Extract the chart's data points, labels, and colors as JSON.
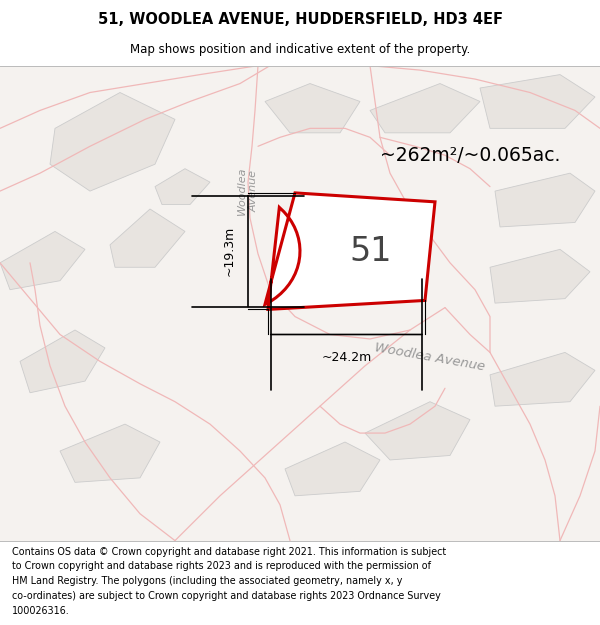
{
  "title": "51, WOODLEA AVENUE, HUDDERSFIELD, HD3 4EF",
  "subtitle": "Map shows position and indicative extent of the property.",
  "footer_lines": [
    "Contains OS data © Crown copyright and database right 2021. This information is subject",
    "to Crown copyright and database rights 2023 and is reproduced with the permission of",
    "HM Land Registry. The polygons (including the associated geometry, namely x, y",
    "co-ordinates) are subject to Crown copyright and database rights 2023 Ordnance Survey",
    "100026316."
  ],
  "area_text": "~262m²/~0.065ac.",
  "label_51": "51",
  "dim_width": "~24.2m",
  "dim_height": "~19.3m",
  "plot_edge": "#cc0000",
  "road_line_color": "#f0b8b8",
  "building_fill": "#e8e4e0",
  "building_edge": "#cccccc",
  "map_bg": "#f5f2ef",
  "title_color": "#000000",
  "footer_color": "#000000",
  "dim_color": "#000000",
  "area_color": "#000000",
  "road_label_color": "#aaaaaa",
  "street_label_color": "#999999"
}
